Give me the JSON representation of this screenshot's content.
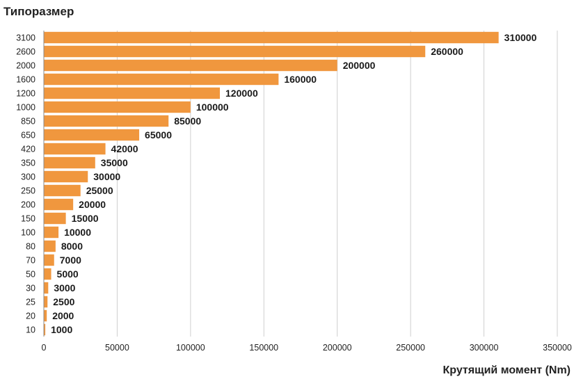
{
  "chart_data": {
    "type": "bar",
    "orientation": "horizontal",
    "ylabel": "Типоразмер",
    "xlabel": "Крутящий момент (Nm)",
    "categories": [
      "3100",
      "2600",
      "2000",
      "1600",
      "1200",
      "1000",
      "850",
      "650",
      "420",
      "350",
      "300",
      "250",
      "200",
      "150",
      "100",
      "80",
      "70",
      "50",
      "30",
      "25",
      "20",
      "10"
    ],
    "values": [
      310000,
      260000,
      200000,
      160000,
      120000,
      100000,
      85000,
      65000,
      42000,
      35000,
      30000,
      25000,
      20000,
      15000,
      10000,
      8000,
      7000,
      5000,
      3000,
      2500,
      2000,
      1000
    ],
    "data_labels": [
      "310000",
      "260000",
      "200000",
      "160000",
      "120000",
      "100000",
      "85000",
      "65000",
      "42000",
      "35000",
      "30000",
      "25000",
      "20000",
      "15000",
      "10000",
      "8000",
      "7000",
      "5000",
      "3000",
      "2500",
      "2000",
      "1000"
    ],
    "xlim": [
      0,
      350000
    ],
    "x_ticks": [
      "0",
      "50000",
      "100000",
      "150000",
      "200000",
      "250000",
      "300000",
      "350000"
    ],
    "x_tick_values": [
      0,
      50000,
      100000,
      150000,
      200000,
      250000,
      300000,
      350000
    ],
    "grid": true,
    "bar_color": "#f0973e"
  }
}
